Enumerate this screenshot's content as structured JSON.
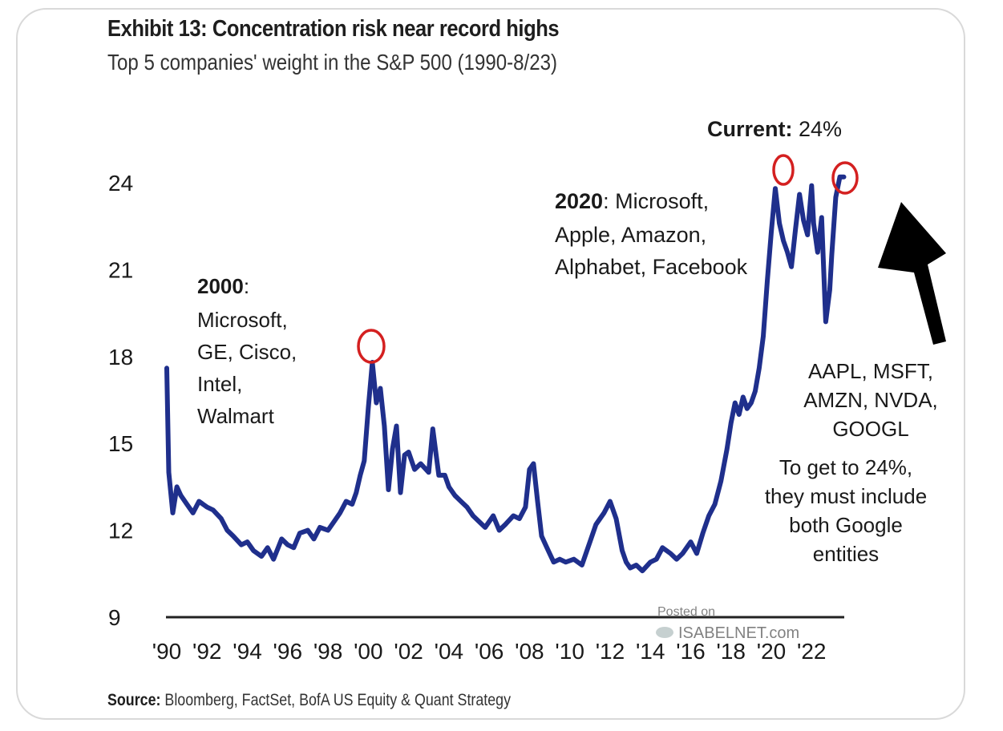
{
  "header": {
    "title": "Exhibit 13: Concentration risk near record highs",
    "subtitle": "Top 5 companies' weight in the S&P 500 (1990-8/23)"
  },
  "footer": {
    "source_label": "Source:",
    "source_text": "Bloomberg, FactSet, BofA US Equity & Quant Strategy"
  },
  "watermark": {
    "line1": "Posted on",
    "line2": "ISABELNET.com"
  },
  "colors": {
    "line": "#1f2f8c",
    "highlight_circle": "#d42020",
    "arrow": "#000000"
  },
  "annotations": {
    "current_bold": "Current:",
    "current_value": " 24%",
    "y2000_bold": "2000",
    "y2000_lines": [
      ":",
      "Microsoft,",
      "GE, Cisco,",
      "Intel,",
      "Walmart"
    ],
    "y2020_bold": "2020",
    "y2020_lines": [
      ": Microsoft,",
      "Apple, Amazon,",
      "Alphabet, Facebook"
    ],
    "tickers": [
      "AAPL, MSFT,",
      "AMZN, NVDA,",
      "GOOGL"
    ],
    "note": [
      "To get to 24%,",
      "they must include",
      "both Google",
      "entities"
    ]
  },
  "chart_data": {
    "type": "line",
    "title": "Exhibit 13: Concentration risk near record highs",
    "subtitle": "Top 5 companies' weight in the S&P 500 (1990-8/23)",
    "xlabel": "",
    "ylabel": "",
    "ylim": [
      9,
      25
    ],
    "xlim": [
      1990,
      2023.7
    ],
    "y_ticks": [
      9,
      12,
      15,
      18,
      21,
      24
    ],
    "x_ticks": [
      1990,
      1992,
      1994,
      1996,
      1998,
      2000,
      2002,
      2004,
      2006,
      2008,
      2010,
      2012,
      2014,
      2016,
      2018,
      2020,
      2022
    ],
    "x_tick_labels": [
      "'90",
      "'92",
      "'94",
      "'96",
      "'98",
      "'00",
      "'02",
      "'04",
      "'06",
      "'08",
      "'10",
      "'12",
      "'14",
      "'16",
      "'18",
      "'20",
      "'22"
    ],
    "grid": false,
    "series": [
      {
        "x": [
          1990.0,
          1990.1,
          1990.3,
          1990.5,
          1990.7,
          1991.0,
          1991.3,
          1991.6,
          1992.0,
          1992.3,
          1992.7,
          1993.0,
          1993.3,
          1993.7,
          1994.0,
          1994.3,
          1994.7,
          1995.0,
          1995.3,
          1995.7,
          1996.0,
          1996.3,
          1996.6,
          1997.0,
          1997.3,
          1997.6,
          1998.0,
          1998.3,
          1998.6,
          1998.9,
          1999.2,
          1999.4,
          1999.6,
          1999.8,
          2000.0,
          2000.2,
          2000.4,
          2000.6,
          2000.8,
          2001.0,
          2001.2,
          2001.4,
          2001.6,
          2001.8,
          2002.0,
          2002.3,
          2002.6,
          2003.0,
          2003.2,
          2003.5,
          2003.8,
          2004.0,
          2004.3,
          2004.6,
          2004.9,
          2005.2,
          2005.5,
          2005.8,
          2006.2,
          2006.5,
          2006.8,
          2007.2,
          2007.5,
          2007.8,
          2008.0,
          2008.2,
          2008.4,
          2008.6,
          2008.8,
          2009.0,
          2009.2,
          2009.5,
          2009.8,
          2010.2,
          2010.6,
          2011.0,
          2011.3,
          2011.7,
          2012.0,
          2012.3,
          2012.6,
          2012.8,
          2013.0,
          2013.3,
          2013.6,
          2014.0,
          2014.3,
          2014.6,
          2015.0,
          2015.3,
          2015.6,
          2016.0,
          2016.3,
          2016.6,
          2016.9,
          2017.2,
          2017.5,
          2017.8,
          2018.0,
          2018.2,
          2018.4,
          2018.6,
          2018.8,
          2019.0,
          2019.2,
          2019.4,
          2019.6,
          2019.8,
          2020.0,
          2020.2,
          2020.4,
          2020.6,
          2020.8,
          2021.0,
          2021.2,
          2021.4,
          2021.6,
          2021.8,
          2022.0,
          2022.1,
          2022.3,
          2022.5,
          2022.7,
          2022.9,
          2023.0,
          2023.2,
          2023.4,
          2023.6
        ],
        "values": [
          17.6,
          14.0,
          12.6,
          13.5,
          13.2,
          12.9,
          12.6,
          13.0,
          12.8,
          12.7,
          12.4,
          12.0,
          11.8,
          11.5,
          11.6,
          11.3,
          11.1,
          11.4,
          11.0,
          11.7,
          11.5,
          11.4,
          11.9,
          12.0,
          11.7,
          12.1,
          12.0,
          12.3,
          12.6,
          13.0,
          12.9,
          13.3,
          13.9,
          14.4,
          16.2,
          17.8,
          16.4,
          16.9,
          15.6,
          13.4,
          14.8,
          15.6,
          13.3,
          14.6,
          14.7,
          14.1,
          14.3,
          14.0,
          15.5,
          13.9,
          13.9,
          13.5,
          13.2,
          13.0,
          12.8,
          12.5,
          12.3,
          12.1,
          12.5,
          12.0,
          12.2,
          12.5,
          12.4,
          12.8,
          14.1,
          14.3,
          13.0,
          11.8,
          11.5,
          11.2,
          10.9,
          11.0,
          10.9,
          11.0,
          10.8,
          11.6,
          12.2,
          12.6,
          13.0,
          12.4,
          11.3,
          10.9,
          10.7,
          10.8,
          10.6,
          10.9,
          11.0,
          11.4,
          11.2,
          11.0,
          11.2,
          11.6,
          11.2,
          11.9,
          12.5,
          12.9,
          13.7,
          14.8,
          15.7,
          16.4,
          16.0,
          16.6,
          16.2,
          16.4,
          16.8,
          17.6,
          18.7,
          20.6,
          22.3,
          23.8,
          22.6,
          22.0,
          21.6,
          21.1,
          22.4,
          23.6,
          22.7,
          22.2,
          23.9,
          22.6,
          21.6,
          22.8,
          19.2,
          20.3,
          21.5,
          23.5,
          24.2,
          24.2
        ]
      }
    ]
  }
}
